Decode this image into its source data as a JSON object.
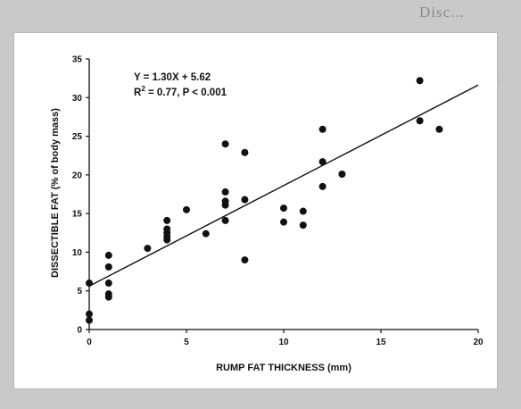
{
  "page": {
    "background_color": "#c9c9c9",
    "panel_color": "#ffffff",
    "heading_fragment": "Disc..."
  },
  "chart_data": {
    "type": "scatter",
    "xlabel": "RUMP FAT THICKNESS (mm)",
    "ylabel": "DISSECTIBLE  FAT (% of body mass)",
    "xlim": [
      0,
      20
    ],
    "ylim": [
      0,
      35
    ],
    "x_ticks": [
      0,
      5,
      10,
      15,
      20
    ],
    "y_ticks": [
      0,
      5,
      10,
      15,
      20,
      25,
      30,
      35
    ],
    "grid": false,
    "annotation": {
      "equation": "Y = 1.30X + 5.62",
      "r2_label": "R",
      "r2_sup": "2",
      "r2_rest": " = 0.77,  P < 0.001"
    },
    "regression": {
      "slope": 1.3,
      "intercept": 5.62,
      "x_range": [
        0,
        20
      ]
    },
    "points": [
      {
        "x": 0,
        "y": 1.2
      },
      {
        "x": 0,
        "y": 2.0
      },
      {
        "x": 0,
        "y": 6.0
      },
      {
        "x": 1,
        "y": 4.2
      },
      {
        "x": 1,
        "y": 4.6
      },
      {
        "x": 1,
        "y": 6.0
      },
      {
        "x": 1,
        "y": 8.1
      },
      {
        "x": 1,
        "y": 9.6
      },
      {
        "x": 3,
        "y": 10.5
      },
      {
        "x": 4,
        "y": 11.6
      },
      {
        "x": 4,
        "y": 12.0
      },
      {
        "x": 4,
        "y": 12.5
      },
      {
        "x": 4,
        "y": 13.0
      },
      {
        "x": 4,
        "y": 14.1
      },
      {
        "x": 5,
        "y": 15.5
      },
      {
        "x": 6,
        "y": 12.4
      },
      {
        "x": 7,
        "y": 14.1
      },
      {
        "x": 7,
        "y": 16.1
      },
      {
        "x": 7,
        "y": 16.6
      },
      {
        "x": 7,
        "y": 17.8
      },
      {
        "x": 7,
        "y": 24.0
      },
      {
        "x": 8,
        "y": 9.0
      },
      {
        "x": 8,
        "y": 16.8
      },
      {
        "x": 8,
        "y": 22.9
      },
      {
        "x": 10,
        "y": 13.9
      },
      {
        "x": 10,
        "y": 15.7
      },
      {
        "x": 11,
        "y": 13.5
      },
      {
        "x": 11,
        "y": 15.3
      },
      {
        "x": 12,
        "y": 18.5
      },
      {
        "x": 12,
        "y": 21.7
      },
      {
        "x": 12,
        "y": 25.9
      },
      {
        "x": 13,
        "y": 20.1
      },
      {
        "x": 17,
        "y": 27.0
      },
      {
        "x": 17,
        "y": 32.2
      },
      {
        "x": 18,
        "y": 25.9
      }
    ]
  }
}
